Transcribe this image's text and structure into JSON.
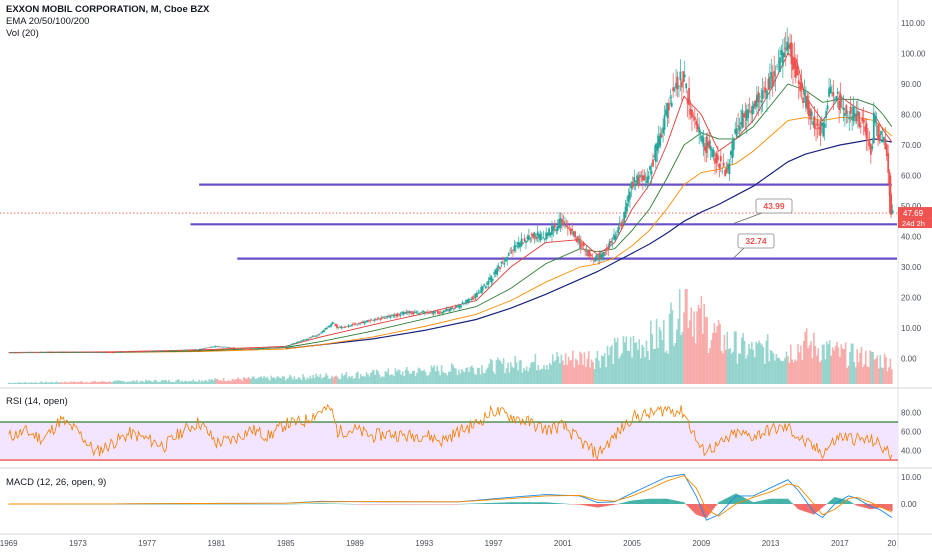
{
  "header": {
    "symbol_line": "EXXON MOBIL CORPORATION, M, Cboe BZX",
    "ema_line": "EMA 20/50/100/200",
    "vol_line": "Vol (20)"
  },
  "rsi_pane": {
    "title": "RSI (14, open)"
  },
  "macd_pane": {
    "title": "MACD (12, 26, open, 9)"
  },
  "price_tags": {
    "last": "47.69",
    "countdown": "24d 2h"
  },
  "colors": {
    "up": "#26a69a",
    "down": "#ef5350",
    "price_line": "#2e7d32",
    "ema20": "#e53935",
    "ema50": "#2e7d32",
    "ema100": "#fb8c00",
    "ema200": "#1a237e",
    "hline": "#6a4fc8",
    "rsi": "#f57c00",
    "rsi_band": "#f3e5ff",
    "macd": "#1e88e5",
    "signal": "#fb8c00",
    "grid": "#e6e9f0",
    "axis_text": "#4a4f5c"
  },
  "chart_data": [
    {
      "type": "line",
      "pane": "price",
      "x_axis": {
        "type": "year",
        "range": [
          1968.5,
          2020.3
        ],
        "ticks": [
          "1969",
          "1973",
          "1977",
          "1981",
          "1985",
          "1989",
          "1993",
          "1997",
          "2001",
          "2005",
          "2009",
          "2013",
          "2017",
          "20"
        ]
      },
      "y_axis": {
        "ticks": [
          "110.00",
          "100.00",
          "90.00",
          "80.00",
          "70.00",
          "60.00",
          "50.00",
          "40.00",
          "30.00",
          "20.00",
          "10.00",
          "0.00"
        ],
        "range": [
          -10,
          113
        ]
      },
      "series": [
        {
          "key": "price",
          "x": [
            1969,
            1972,
            1975,
            1978,
            1980,
            1981,
            1983,
            1985,
            1987,
            1987.8,
            1988,
            1990,
            1992,
            1994,
            1995,
            1996,
            1997,
            1998,
            1999,
            2000,
            2001,
            2002,
            2002.8,
            2003.5,
            2004,
            2004.5,
            2005,
            2006,
            2007,
            2007.5,
            2008,
            2008.5,
            2009,
            2010,
            2010.5,
            2011,
            2011.5,
            2012,
            2013,
            2013.5,
            2014,
            2014.5,
            2015,
            2015.5,
            2016,
            2016.5,
            2017,
            2017.5,
            2018,
            2018.5,
            2018.9,
            2019,
            2019.3,
            2019.5,
            2019.7,
            2019.85,
            2020.0
          ],
          "y": [
            1.9,
            2.2,
            2.0,
            2.5,
            3.0,
            4.0,
            3.0,
            3.8,
            8.0,
            12.0,
            10.0,
            12.5,
            15.0,
            15.2,
            17.0,
            20.5,
            27.0,
            35.0,
            40.0,
            40.0,
            45.0,
            38.0,
            32.0,
            35.0,
            40.0,
            45.0,
            57.0,
            60.0,
            80.0,
            90.0,
            92.0,
            80.0,
            72.0,
            65.0,
            60.0,
            75.0,
            80.0,
            83.0,
            90.0,
            95.0,
            104.0,
            95.0,
            85.0,
            78.0,
            75.0,
            88.0,
            84.0,
            80.0,
            80.0,
            75.0,
            68.0,
            80.0,
            73.0,
            73.0,
            68.0,
            60.0,
            47.69
          ]
        },
        {
          "key": "ema20",
          "x": [
            1969,
            1975,
            1980,
            1985,
            1987,
            1990,
            1993,
            1996,
            1998,
            2000,
            2002,
            2003,
            2004,
            2005,
            2006,
            2007,
            2008,
            2009,
            2010,
            2011,
            2012,
            2013,
            2014,
            2014.5,
            2015,
            2016,
            2017,
            2018,
            2019,
            2019.5,
            2020.0
          ],
          "y": [
            2,
            2.2,
            2.8,
            4,
            7,
            11,
            14.8,
            19,
            30,
            38,
            39,
            34,
            38,
            49,
            57,
            70,
            86,
            80,
            68,
            72,
            78,
            88,
            100,
            98,
            86,
            78,
            86,
            82,
            80,
            75,
            71
          ]
        },
        {
          "key": "ema50",
          "x": [
            1969,
            1975,
            1980,
            1985,
            1987,
            1990,
            1993,
            1996,
            1998,
            2000,
            2002,
            2003,
            2004,
            2005,
            2006,
            2007,
            2008,
            2009,
            2010,
            2011,
            2012,
            2013,
            2014,
            2015,
            2016,
            2017,
            2018,
            2019,
            2019.5,
            2020.0
          ],
          "y": [
            1.9,
            2,
            2.5,
            3.6,
            5.5,
            9,
            13,
            17,
            23,
            31,
            36,
            35,
            36,
            42,
            49,
            59,
            70,
            74,
            72,
            72,
            76,
            83,
            90,
            88,
            84,
            85,
            85,
            83,
            80,
            76
          ]
        },
        {
          "key": "ema100",
          "x": [
            1969,
            1975,
            1980,
            1985,
            1987,
            1990,
            1993,
            1996,
            1998,
            2000,
            2002,
            2003,
            2004,
            2005,
            2006,
            2007,
            2008,
            2009,
            2010,
            2011,
            2012,
            2013,
            2014,
            2015,
            2016,
            2017,
            2018,
            2019,
            2020.0
          ],
          "y": [
            1.9,
            2,
            2.3,
            3.1,
            4.5,
            7,
            10.5,
            14.5,
            19,
            25,
            30,
            31,
            33,
            37,
            42,
            49,
            57,
            61,
            62,
            64,
            68,
            73,
            78,
            79,
            78,
            79,
            79,
            78,
            73
          ]
        },
        {
          "key": "ema200",
          "x": [
            1969,
            1975,
            1980,
            1985,
            1990,
            1993,
            1996,
            1998,
            2000,
            2002,
            2003,
            2004,
            2005,
            2006,
            2007,
            2008,
            2009,
            2010,
            2011,
            2012,
            2013,
            2014,
            2015,
            2016,
            2017,
            2018,
            2019,
            2020.0
          ],
          "y": [
            null,
            null,
            null,
            3.2,
            6.4,
            9.2,
            12.8,
            16.5,
            21,
            26,
            28.5,
            31.5,
            34.5,
            37.5,
            41,
            45,
            48,
            50.5,
            53.5,
            56.5,
            60.5,
            64.5,
            67,
            68.5,
            70,
            71,
            72,
            71
          ]
        }
      ],
      "hlines": [
        {
          "y": 57.0,
          "x_range": [
            1980,
            2020
          ]
        },
        {
          "y": 43.99,
          "x_range": [
            1979.5,
            2020.3
          ],
          "label": "43.99"
        },
        {
          "y": 32.74,
          "x_range": [
            1982.2,
            2020.3
          ],
          "label": "32.74"
        }
      ],
      "last_price_line": 47.69
    },
    {
      "type": "bar",
      "pane": "volume",
      "x": [
        1969,
        1975,
        1980,
        1985,
        1990,
        1995,
        2000,
        2003,
        2005,
        2007,
        2008,
        2008.5,
        2009,
        2010,
        2011,
        2012,
        2013,
        2014,
        2015,
        2016,
        2017,
        2018,
        2019,
        2020.0
      ],
      "values": [
        0.05,
        0.1,
        0.15,
        0.25,
        0.4,
        0.6,
        0.9,
        1.1,
        1.5,
        2.0,
        3.8,
        3.0,
        2.5,
        1.8,
        1.5,
        1.3,
        1.4,
        1.3,
        1.6,
        1.4,
        1.2,
        1.1,
        1.0,
        0.9
      ]
    },
    {
      "type": "line",
      "pane": "rsi",
      "y_axis": {
        "ticks": [
          "80.00",
          "60.00",
          "40.00"
        ],
        "range": [
          28,
          92
        ]
      },
      "levels": [
        70,
        30
      ],
      "x": [
        1969,
        1970,
        1971,
        1972,
        1973,
        1974,
        1975,
        1976,
        1977,
        1978,
        1979,
        1980,
        1981,
        1982,
        1983,
        1984,
        1985,
        1986,
        1987,
        1987.6,
        1988,
        1989,
        1990,
        1991,
        1992,
        1993,
        1994,
        1995,
        1996,
        1997,
        1998,
        1999,
        2000,
        2001,
        2002,
        2003,
        2004,
        2005,
        2006,
        2007,
        2008,
        2009,
        2010,
        2011,
        2012,
        2013,
        2014,
        2015,
        2016,
        2017,
        2018,
        2019,
        2020.0
      ],
      "y": [
        55,
        60,
        52,
        72,
        60,
        38,
        48,
        58,
        52,
        45,
        60,
        70,
        48,
        52,
        62,
        55,
        68,
        70,
        82,
        84,
        60,
        62,
        55,
        58,
        55,
        57,
        50,
        60,
        68,
        82,
        76,
        70,
        62,
        66,
        50,
        36,
        55,
        75,
        78,
        84,
        80,
        40,
        45,
        58,
        55,
        62,
        64,
        48,
        38,
        55,
        52,
        50,
        35
      ]
    },
    {
      "type": "line",
      "pane": "macd",
      "y_axis": {
        "ticks": [
          "10.00",
          "0.00"
        ],
        "range": [
          -16,
          16
        ]
      },
      "x": [
        1969,
        1975,
        1980,
        1985,
        1987,
        1990,
        1995,
        1998,
        2000,
        2002,
        2003,
        2004,
        2005,
        2006,
        2007,
        2008,
        2008.7,
        2009.3,
        2010,
        2011,
        2012,
        2013,
        2014,
        2014.6,
        2015.5,
        2016,
        2016.7,
        2017.5,
        2018,
        2018.8,
        2019.3,
        2020.0
      ],
      "series": [
        {
          "key": "macd",
          "y": [
            0,
            0.05,
            0.2,
            0.3,
            1.0,
            0.8,
            0.8,
            2.5,
            3.5,
            3.0,
            0.5,
            0.8,
            4,
            7,
            10,
            11,
            3,
            -6,
            -4,
            3,
            3,
            6,
            9,
            5,
            -3,
            -5,
            0,
            3,
            2,
            -1,
            -2,
            -5
          ]
        },
        {
          "key": "signal",
          "y": [
            0,
            0.05,
            0.2,
            0.3,
            0.8,
            0.9,
            0.8,
            2,
            3,
            3.2,
            1.5,
            1,
            3,
            5.5,
            8.5,
            10.5,
            6,
            -2,
            -4.5,
            0,
            2.5,
            4.5,
            7.5,
            6.5,
            0,
            -4,
            -2,
            2,
            2.5,
            0.5,
            -1,
            -3
          ]
        }
      ]
    }
  ]
}
